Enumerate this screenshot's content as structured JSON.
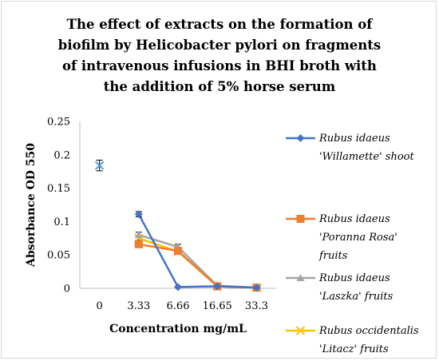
{
  "chart_data": {
    "type": "line",
    "title": "The effect of extracts on the formation of\nbiofilm by Helicobacter pylori on fragments\nof intravenous infusions in BHI broth with\nthe addition of 5% horse serum",
    "xlabel": "Concentration mg/mL",
    "ylabel": "Absorbance OD 550",
    "categories": [
      "0",
      "3.33",
      "6.66",
      "16.65",
      "33.3"
    ],
    "ylim": [
      0,
      0.25
    ],
    "yticks": [
      "0",
      "0.05",
      "0.1",
      "0.15",
      "0.2",
      "0.25"
    ],
    "grid": false,
    "legend_position": "right",
    "control_point": {
      "category": "0",
      "value": 0.184,
      "error": 0.008,
      "color": "#5b9bd5",
      "marker": "x"
    },
    "series": [
      {
        "name": "Rubus idaeus 'Willamette' shoot",
        "legend_lines": [
          "Rubus idaeus",
          "'Willamette' shoot"
        ],
        "color": "#4472c4",
        "marker": "diamond",
        "values": [
          null,
          0.111,
          0.002,
          0.003,
          0.001
        ],
        "errors": [
          null,
          0.004,
          0.001,
          0.001,
          0.001
        ]
      },
      {
        "name": "Rubus idaeus 'Poranna Rosa' fruits",
        "legend_lines": [
          "Rubus idaeus",
          "'Poranna Rosa'",
          "fruits"
        ],
        "color": "#ed7d31",
        "marker": "square",
        "values": [
          null,
          0.066,
          0.056,
          0.003,
          0.001
        ],
        "errors": [
          null,
          0.003,
          0.003,
          0.001,
          0.001
        ]
      },
      {
        "name": "Rubus idaeus 'Laszka' fruits",
        "legend_lines": [
          "Rubus idaeus",
          "'Laszka' fruits"
        ],
        "color": "#a5a5a5",
        "marker": "triangle",
        "values": [
          null,
          0.08,
          0.062,
          0.004,
          0.001
        ],
        "errors": [
          null,
          0.004,
          0.004,
          0.001,
          0.001
        ]
      },
      {
        "name": "Rubus occidentalis 'Litacz' fruits",
        "legend_lines": [
          "Rubus occidentalis",
          "'Litacz' fruits"
        ],
        "color": "#ffc000",
        "marker": "x",
        "values": [
          null,
          0.075,
          0.055,
          0.003,
          0.001
        ],
        "errors": [
          null,
          0.003,
          0.003,
          0.001,
          0.001
        ]
      }
    ]
  }
}
